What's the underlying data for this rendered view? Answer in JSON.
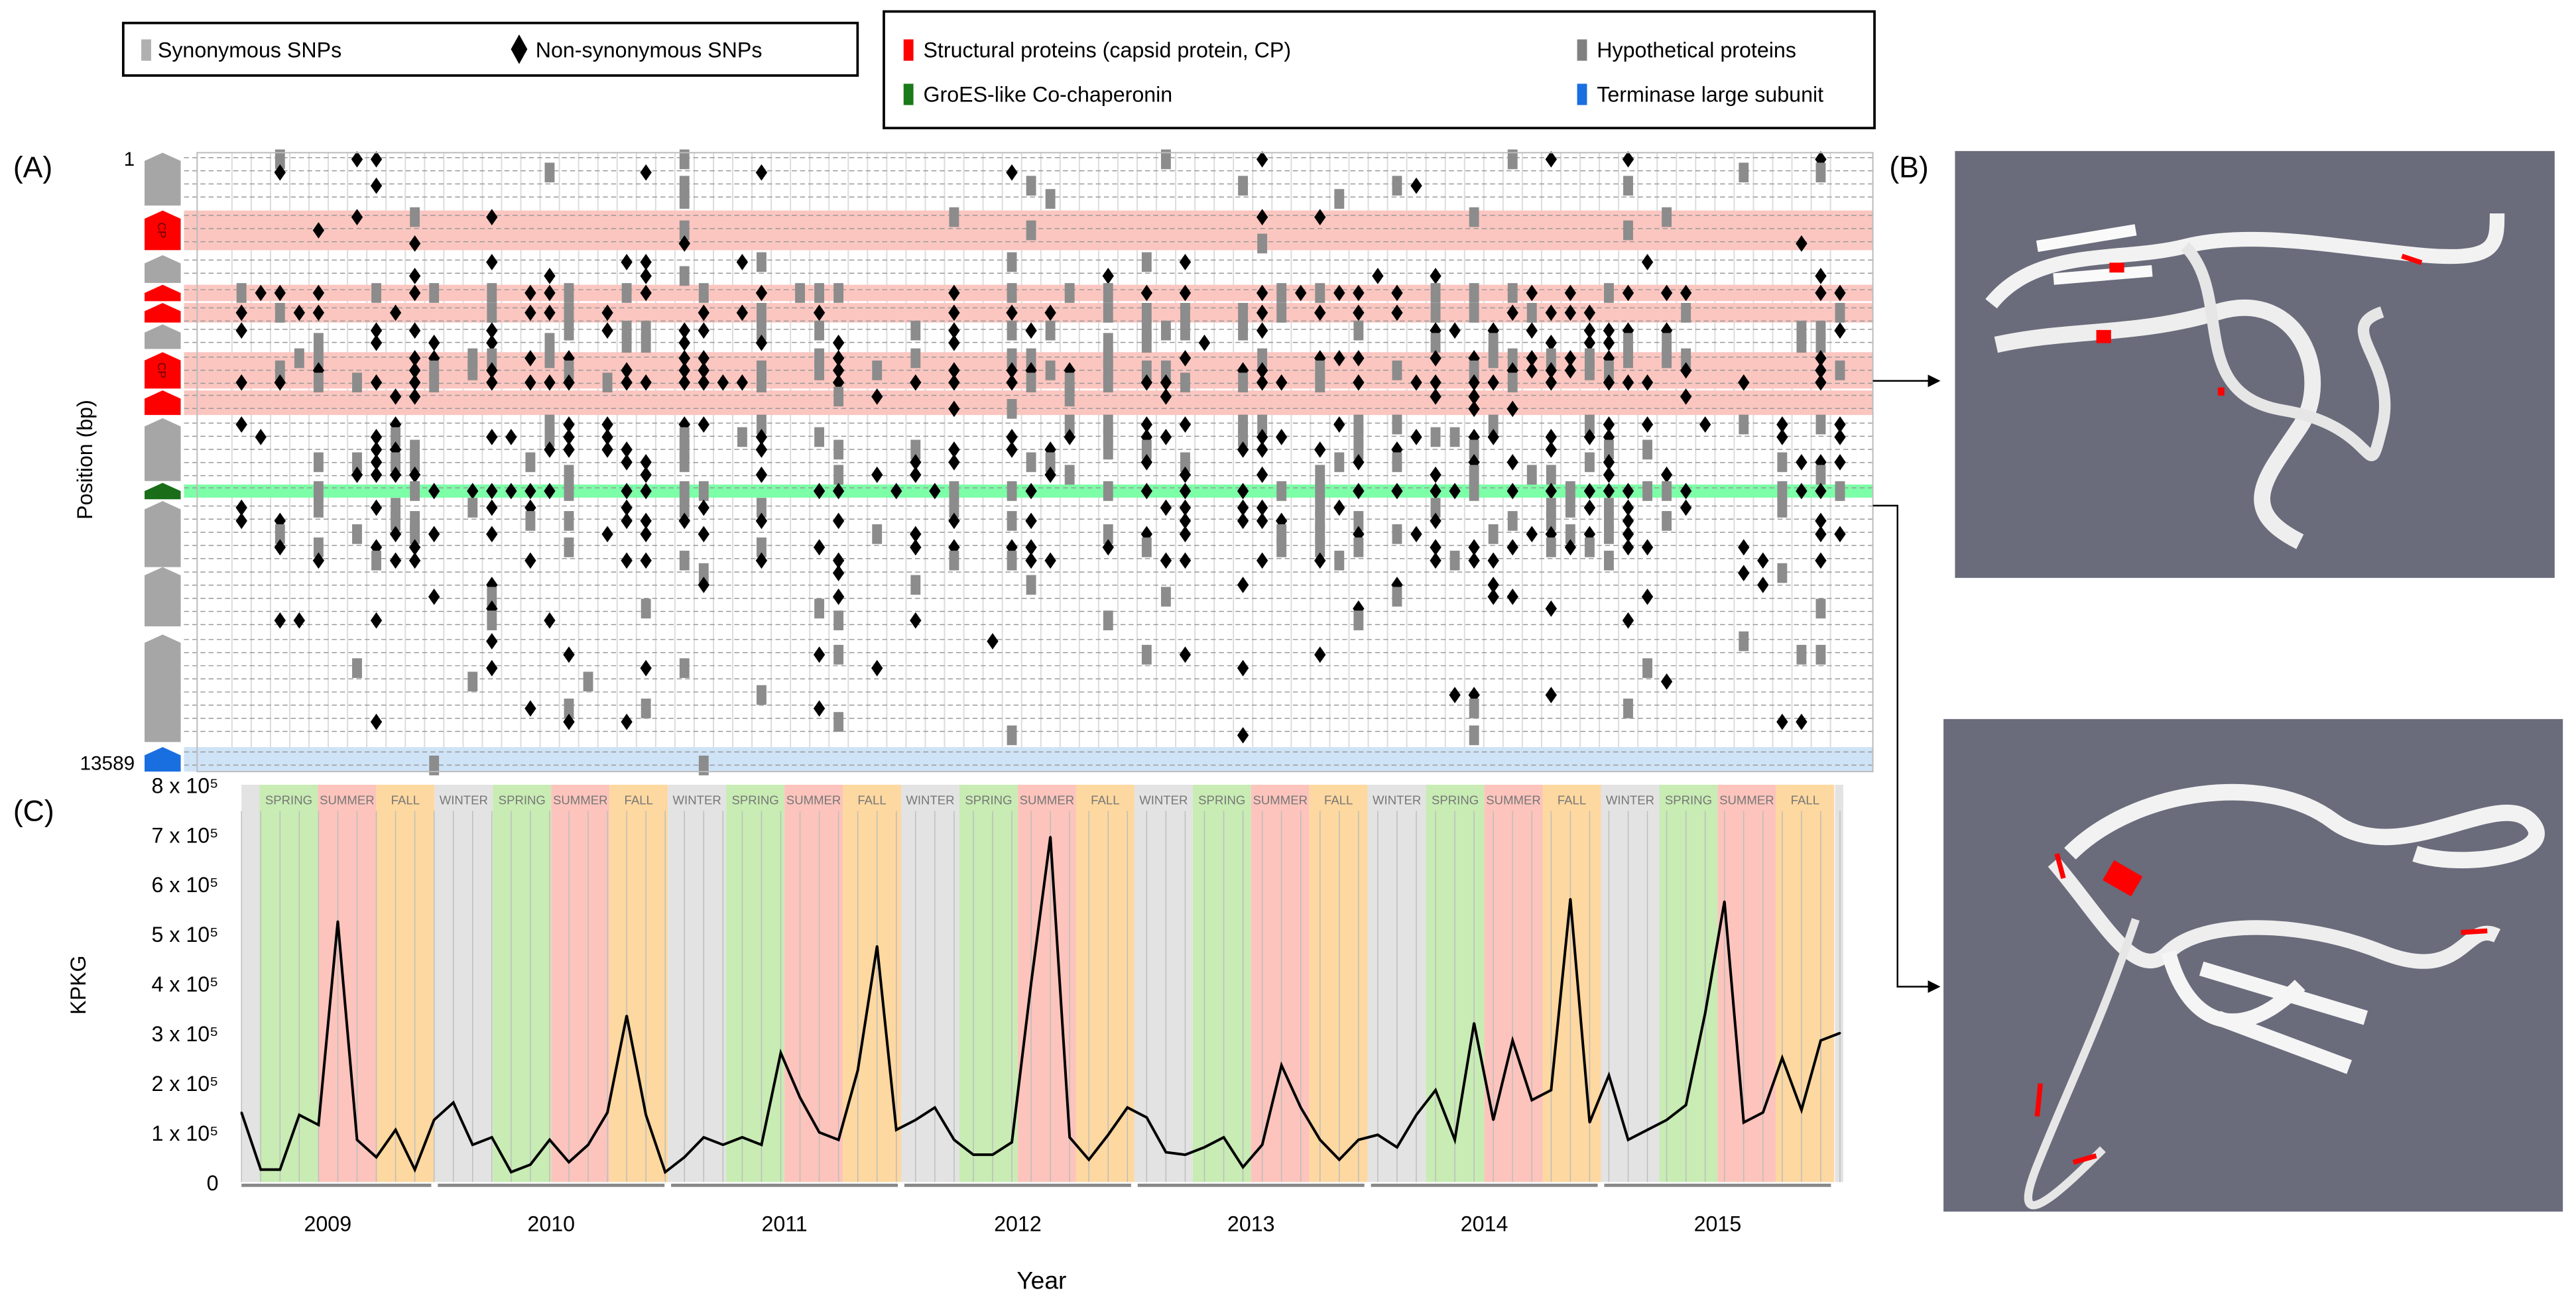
{
  "legend_snp": {
    "items": [
      {
        "label": "Synonymous SNPs",
        "symbol": "gray-bar",
        "color": "#b0b0b0"
      },
      {
        "label": "Non-synonymous SNPs",
        "symbol": "diamond",
        "color": "#000000"
      }
    ]
  },
  "legend_genes": {
    "items": [
      {
        "label": "Structural proteins (capsid protein, CP)",
        "color": "#ff0000"
      },
      {
        "label": "Hypothetical proteins",
        "color": "#808080"
      },
      {
        "label": "GroES-like Co-chaperonin",
        "color": "#1a7a1a"
      },
      {
        "label": "Terminase large subunit",
        "color": "#1a6fe0"
      }
    ]
  },
  "panel_a": {
    "label": "(A)",
    "ylabel": "Position (bp)",
    "y_start_label": "1",
    "y_end_label": "13589",
    "genome_length": 13589,
    "cp_label": "CP",
    "tracks": [
      {
        "type": "hypothetical",
        "start": 1,
        "end": 1160,
        "density": 0.1
      },
      {
        "type": "structural",
        "start": 1270,
        "end": 2140,
        "density": 0.08,
        "cp": true
      },
      {
        "type": "hypothetical",
        "start": 2250,
        "end": 2860,
        "density": 0.15
      },
      {
        "type": "structural",
        "start": 2900,
        "end": 3260,
        "density": 0.55
      },
      {
        "type": "structural",
        "start": 3300,
        "end": 3730,
        "density": 0.6
      },
      {
        "type": "hypothetical",
        "start": 3770,
        "end": 4310,
        "density": 0.6
      },
      {
        "type": "structural",
        "start": 4380,
        "end": 5180,
        "density": 0.7,
        "cp": true
      },
      {
        "type": "structural",
        "start": 5220,
        "end": 5760,
        "density": 0.15
      },
      {
        "type": "hypothetical",
        "start": 5830,
        "end": 7210,
        "density": 0.45
      },
      {
        "type": "groes",
        "start": 7250,
        "end": 7610,
        "density": 0.75
      },
      {
        "type": "hypothetical",
        "start": 7650,
        "end": 9100,
        "density": 0.5
      },
      {
        "type": "hypothetical",
        "start": 9100,
        "end": 10400,
        "density": 0.12
      },
      {
        "type": "hypothetical",
        "start": 10580,
        "end": 12940,
        "density": 0.08
      },
      {
        "type": "terminase",
        "start": 13050,
        "end": 13589,
        "density": 0.03
      }
    ],
    "colors": {
      "structural": "#ff0000",
      "hypothetical": "#a6a6a6",
      "groes": "#1a6e1a",
      "terminase": "#1a6fe0",
      "structural_band": "#fbc6c0",
      "groes_band": "#7dffa8",
      "terminase_band": "#cfe3f7"
    }
  },
  "panel_b": {
    "label": "(B)"
  },
  "chart_data": {
    "type": "line",
    "panel_label": "(C)",
    "title": "",
    "xlabel": "Year",
    "ylabel": "KPKG",
    "ylim": [
      0,
      800000
    ],
    "y_ticks": [
      {
        "value": 0,
        "label": "0"
      },
      {
        "value": 100000,
        "label": "1 x 10⁵"
      },
      {
        "value": 200000,
        "label": "2 x 10⁵"
      },
      {
        "value": 300000,
        "label": "3 x 10⁵"
      },
      {
        "value": 400000,
        "label": "4 x 10⁵"
      },
      {
        "value": 500000,
        "label": "5 x 10⁵"
      },
      {
        "value": 600000,
        "label": "6 x 10⁵"
      },
      {
        "value": 700000,
        "label": "7 x 10⁵"
      },
      {
        "value": 800000,
        "label": "8 x 10⁵"
      }
    ],
    "years": [
      "2009",
      "2010",
      "2011",
      "2012",
      "2013",
      "2014",
      "2015"
    ],
    "seasons": [
      {
        "label": "WINTER",
        "color": "#e3e3e3"
      },
      {
        "label": "SPRING",
        "color": "#c8ecb4"
      },
      {
        "label": "SUMMER",
        "color": "#fcc4bc"
      },
      {
        "label": "FALL",
        "color": "#fdd8a0"
      }
    ],
    "hide_first_winter_label": true,
    "grid": false,
    "series": [
      {
        "name": "KPKG",
        "color": "#000000",
        "values": [
          140000,
          25000,
          25000,
          135000,
          115000,
          525000,
          85000,
          50000,
          105000,
          25000,
          125000,
          160000,
          75000,
          90000,
          20000,
          35000,
          85000,
          40000,
          75000,
          140000,
          335000,
          135000,
          20000,
          50000,
          90000,
          75000,
          90000,
          75000,
          260000,
          170000,
          100000,
          85000,
          225000,
          475000,
          105000,
          125000,
          150000,
          85000,
          55000,
          55000,
          80000,
          400000,
          695000,
          90000,
          45000,
          95000,
          150000,
          130000,
          60000,
          55000,
          70000,
          90000,
          30000,
          75000,
          235000,
          150000,
          85000,
          45000,
          85000,
          95000,
          70000,
          135000,
          185000,
          85000,
          320000,
          125000,
          285000,
          165000,
          185000,
          570000,
          120000,
          215000,
          85000,
          105000,
          125000,
          155000,
          340000,
          565000,
          120000,
          140000,
          250000,
          145000,
          285000,
          300000
        ]
      }
    ]
  }
}
